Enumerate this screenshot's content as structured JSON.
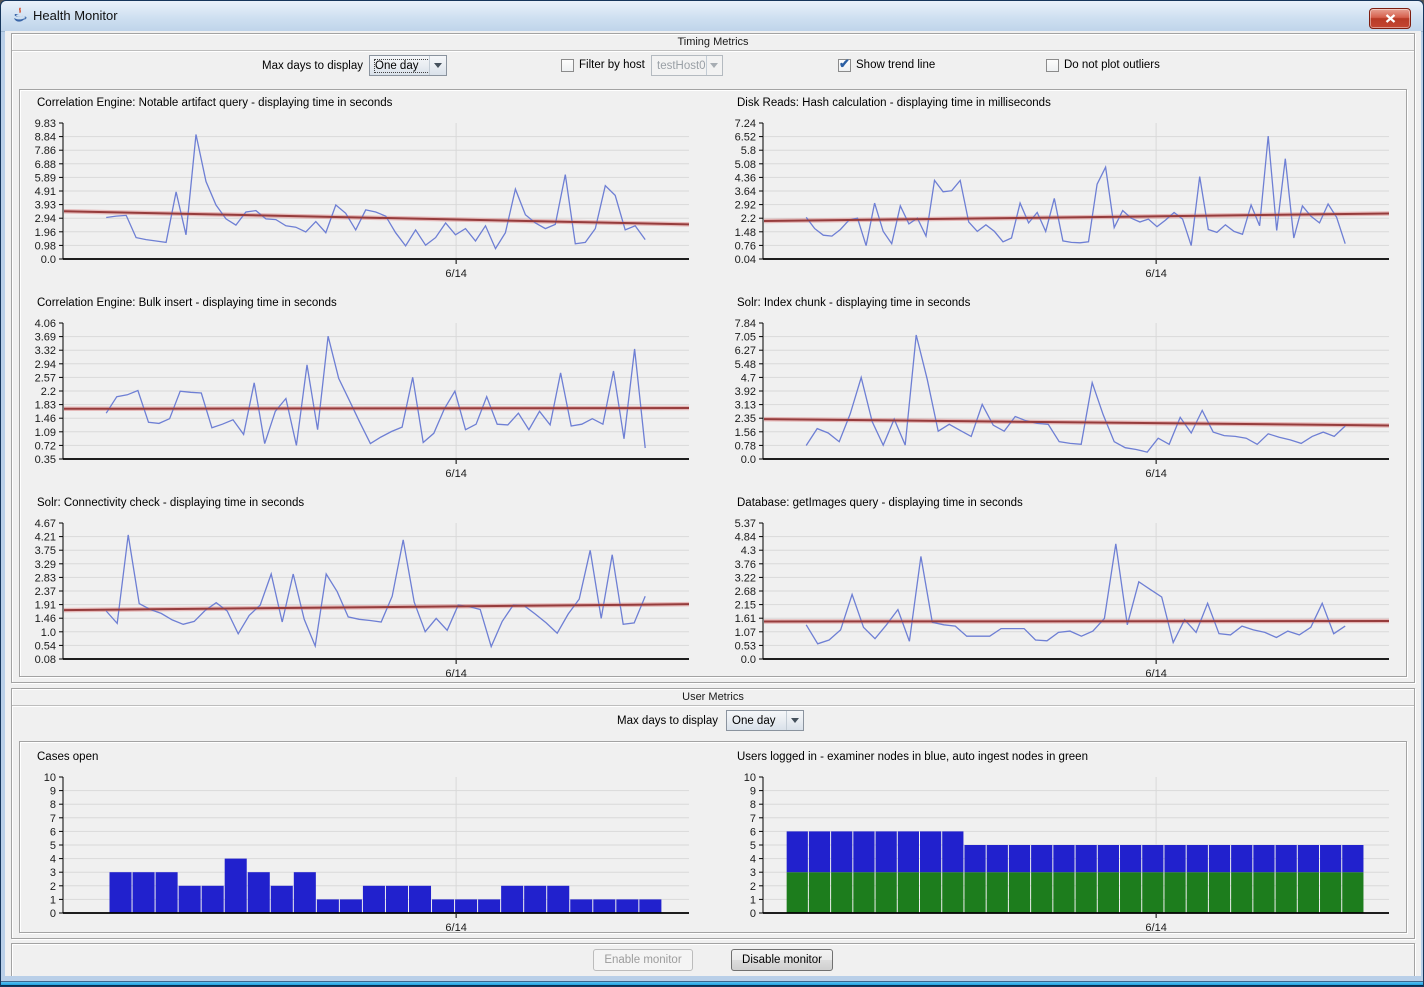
{
  "window": {
    "title": "Health Monitor"
  },
  "colors": {
    "line": "#6e7fd4",
    "trend_core": "#963c3c",
    "trend_halo": "rgba(220,140,140,0.55)",
    "bar_blue": "#2121cd",
    "bar_green": "#1d7d1d",
    "titlebar_top": "#eaf2fb",
    "titlebar_bottom": "#bfd4ea",
    "close_red": "#c44531",
    "grid": "#d9d9d9"
  },
  "timing": {
    "section_title": "Timing Metrics",
    "max_days_label": "Max days to display",
    "max_days_value": "One day",
    "filter_label": "Filter by host",
    "filter_host_value": "testHost0",
    "trend_label": "Show trend line",
    "outliers_label": "Do not plot outliers",
    "charts": [
      {
        "type": "line",
        "title": "Correlation Engine: Notable artifact query - displaying time in seconds",
        "y_ticks": [
          "9.83",
          "8.84",
          "7.86",
          "6.88",
          "5.89",
          "4.91",
          "3.93",
          "2.94",
          "1.96",
          "0.98",
          "0.0"
        ],
        "y_max": 9.83,
        "y_min": 0.0,
        "x_tick_label": "6/14",
        "x_tick_frac": 0.628,
        "x_start": 0.069,
        "x_end": 0.93,
        "values": [
          3.0,
          3.1,
          3.15,
          1.55,
          1.4,
          1.3,
          1.2,
          4.85,
          1.75,
          9.0,
          5.6,
          3.9,
          2.9,
          2.45,
          3.4,
          3.5,
          2.9,
          2.85,
          2.4,
          2.3,
          1.95,
          2.7,
          1.9,
          3.9,
          3.3,
          2.1,
          3.55,
          3.4,
          3.1,
          1.9,
          0.95,
          2.1,
          1.0,
          1.55,
          2.6,
          1.75,
          2.2,
          1.3,
          2.4,
          0.75,
          1.9,
          5.05,
          3.2,
          2.6,
          2.2,
          2.5,
          6.1,
          1.1,
          1.2,
          2.2,
          5.3,
          4.6,
          2.1,
          2.4,
          1.4
        ],
        "trend": {
          "start": 3.45,
          "end": 2.5
        }
      },
      {
        "type": "line",
        "title": "Disk Reads: Hash calculation - displaying time in milliseconds",
        "y_ticks": [
          "7.24",
          "6.52",
          "5.8",
          "5.08",
          "4.36",
          "3.64",
          "2.92",
          "2.2",
          "1.48",
          "0.76",
          "0.04"
        ],
        "y_max": 7.24,
        "y_min": 0.04,
        "x_tick_label": "6/14",
        "x_tick_frac": 0.628,
        "x_start": 0.069,
        "x_end": 0.93,
        "values": [
          2.25,
          1.65,
          1.3,
          1.25,
          1.6,
          2.1,
          2.2,
          0.75,
          3.0,
          1.5,
          0.85,
          2.85,
          1.9,
          2.2,
          1.25,
          4.2,
          3.6,
          3.65,
          4.2,
          2.0,
          1.5,
          1.85,
          1.5,
          0.95,
          1.15,
          3.0,
          1.95,
          2.5,
          1.5,
          3.25,
          1.0,
          0.92,
          0.9,
          0.95,
          4.0,
          4.9,
          1.7,
          2.6,
          2.2,
          2.0,
          2.15,
          1.75,
          2.1,
          2.5,
          2.15,
          0.75,
          4.4,
          1.6,
          1.45,
          1.85,
          1.5,
          1.35,
          2.9,
          1.8,
          6.55,
          1.55,
          5.35,
          1.15,
          2.85,
          2.3,
          1.95,
          2.95,
          2.25,
          0.85
        ],
        "trend": {
          "start": 2.05,
          "end": 2.45
        }
      },
      {
        "type": "line",
        "title": "Correlation Engine: Bulk insert - displaying time in seconds",
        "y_ticks": [
          "4.06",
          "3.69",
          "3.32",
          "2.94",
          "2.57",
          "2.2",
          "1.83",
          "1.46",
          "1.09",
          "0.72",
          "0.35"
        ],
        "y_max": 4.06,
        "y_min": 0.35,
        "x_tick_label": "6/14",
        "x_tick_frac": 0.628,
        "x_start": 0.069,
        "x_end": 0.93,
        "values": [
          1.6,
          2.05,
          2.1,
          2.22,
          1.35,
          1.32,
          1.45,
          2.2,
          2.17,
          2.15,
          1.2,
          1.3,
          1.42,
          1.02,
          2.43,
          0.77,
          1.65,
          2.0,
          0.72,
          2.92,
          1.15,
          3.7,
          2.55,
          1.95,
          1.35,
          0.77,
          0.95,
          1.1,
          1.22,
          2.58,
          0.8,
          1.05,
          1.72,
          2.2,
          1.15,
          1.3,
          2.05,
          1.3,
          1.28,
          1.6,
          1.15,
          1.65,
          1.28,
          2.7,
          1.25,
          1.3,
          1.45,
          1.3,
          2.75,
          0.9,
          3.35,
          0.65
        ],
        "trend": {
          "start": 1.72,
          "end": 1.74
        }
      },
      {
        "type": "line",
        "title": "Solr: Index chunk - displaying time in seconds",
        "y_ticks": [
          "7.84",
          "7.05",
          "6.27",
          "5.48",
          "4.7",
          "3.92",
          "3.13",
          "2.35",
          "1.56",
          "0.78",
          "0.0"
        ],
        "y_max": 7.84,
        "y_min": 0.0,
        "x_tick_label": "6/14",
        "x_tick_frac": 0.628,
        "x_start": 0.069,
        "x_end": 0.93,
        "values": [
          0.78,
          1.75,
          1.5,
          1.0,
          2.6,
          4.7,
          2.15,
          0.8,
          2.3,
          0.8,
          7.15,
          4.6,
          1.6,
          2.0,
          1.65,
          1.3,
          3.15,
          1.95,
          1.6,
          2.45,
          2.2,
          2.05,
          2.0,
          1.0,
          0.9,
          0.85,
          4.4,
          2.55,
          1.0,
          0.65,
          0.55,
          0.4,
          1.2,
          0.85,
          2.4,
          1.5,
          2.8,
          1.55,
          1.35,
          1.3,
          1.2,
          0.85,
          1.45,
          1.25,
          1.1,
          0.9,
          1.3,
          1.55,
          1.3,
          1.9
        ],
        "trend": {
          "start": 2.3,
          "end": 1.93
        }
      },
      {
        "type": "line",
        "title": "Solr: Connectivity check - displaying time in seconds",
        "y_ticks": [
          "4.67",
          "4.21",
          "3.75",
          "3.29",
          "2.83",
          "2.37",
          "1.91",
          "1.46",
          "1.0",
          "0.54",
          "0.08"
        ],
        "y_max": 4.67,
        "y_min": 0.08,
        "x_tick_label": "6/14",
        "x_tick_frac": 0.628,
        "x_start": 0.069,
        "x_end": 0.93,
        "values": [
          1.7,
          1.28,
          4.27,
          1.95,
          1.75,
          1.62,
          1.4,
          1.25,
          1.35,
          1.72,
          1.98,
          1.7,
          0.93,
          1.55,
          1.9,
          2.95,
          1.33,
          2.95,
          1.42,
          0.52,
          2.95,
          2.35,
          1.5,
          1.42,
          1.38,
          1.33,
          2.2,
          4.1,
          2.0,
          1.0,
          1.45,
          1.05,
          1.9,
          1.85,
          1.75,
          0.5,
          1.35,
          1.9,
          1.88,
          1.6,
          1.3,
          0.95,
          1.6,
          2.1,
          3.75,
          1.45,
          3.6,
          1.25,
          1.3,
          2.2
        ],
        "trend": {
          "start": 1.73,
          "end": 1.93
        }
      },
      {
        "type": "line",
        "title": "Database: getImages query - displaying time in seconds",
        "y_ticks": [
          "5.37",
          "4.84",
          "4.3",
          "3.76",
          "3.22",
          "2.68",
          "2.15",
          "1.61",
          "1.07",
          "0.53",
          "0.0"
        ],
        "y_max": 5.37,
        "y_min": 0.0,
        "x_tick_label": "6/14",
        "x_tick_frac": 0.628,
        "x_start": 0.069,
        "x_end": 0.93,
        "values": [
          1.35,
          0.6,
          0.75,
          1.15,
          2.55,
          1.25,
          0.8,
          1.35,
          1.95,
          0.7,
          4.05,
          1.45,
          1.35,
          1.3,
          0.9,
          0.9,
          0.9,
          1.2,
          1.2,
          1.2,
          0.75,
          0.72,
          1.05,
          1.1,
          0.9,
          1.1,
          1.6,
          4.55,
          1.35,
          3.05,
          2.75,
          2.45,
          0.65,
          1.55,
          1.05,
          2.2,
          1.0,
          0.95,
          1.3,
          1.15,
          1.05,
          0.85,
          1.1,
          0.95,
          1.25,
          2.2,
          1.0,
          1.3
        ],
        "trend": {
          "start": 1.48,
          "end": 1.5
        }
      }
    ]
  },
  "user": {
    "section_title": "User Metrics",
    "max_days_label": "Max days to display",
    "max_days_value": "One day",
    "charts": [
      {
        "type": "bar",
        "title": "Cases open",
        "y_ticks": [
          "10",
          "9",
          "8",
          "7",
          "6",
          "5",
          "4",
          "3",
          "2",
          "1",
          "0"
        ],
        "y_max": 10,
        "y_min": 0,
        "x_tick_label": "6/14",
        "x_tick_frac": 0.628,
        "bar_start": 0.0735,
        "bar_w": 0.0368,
        "color_key": "bar_blue",
        "values": [
          3,
          3,
          3,
          2,
          2,
          4,
          3,
          2,
          3,
          1,
          1,
          2,
          2,
          2,
          1,
          1,
          1,
          2,
          2,
          2,
          1,
          1,
          1,
          1
        ]
      },
      {
        "type": "stacked-bar",
        "title": "Users logged in - examiner nodes in blue, auto ingest nodes in green",
        "y_ticks": [
          "10",
          "9",
          "8",
          "7",
          "6",
          "5",
          "4",
          "3",
          "2",
          "1",
          "0"
        ],
        "y_max": 10,
        "y_min": 0,
        "x_tick_label": "6/14",
        "x_tick_frac": 0.628,
        "bar_start": 0.037,
        "bar_w": 0.0355,
        "stack": [
          {
            "name": "auto ingest nodes",
            "color_key": "bar_green",
            "values": [
              3,
              3,
              3,
              3,
              3,
              3,
              3,
              3,
              3,
              3,
              3,
              3,
              3,
              3,
              3,
              3,
              3,
              3,
              3,
              3,
              3,
              3,
              3,
              3,
              3,
              3
            ]
          },
          {
            "name": "examiner nodes",
            "color_key": "bar_blue",
            "values": [
              3,
              3,
              3,
              3,
              3,
              3,
              3,
              3,
              2,
              2,
              2,
              2,
              2,
              2,
              2,
              2,
              2,
              2,
              2,
              2,
              2,
              2,
              2,
              2,
              2,
              2
            ]
          }
        ]
      }
    ]
  },
  "footer": {
    "enable_label": "Enable monitor",
    "disable_label": "Disable monitor"
  }
}
